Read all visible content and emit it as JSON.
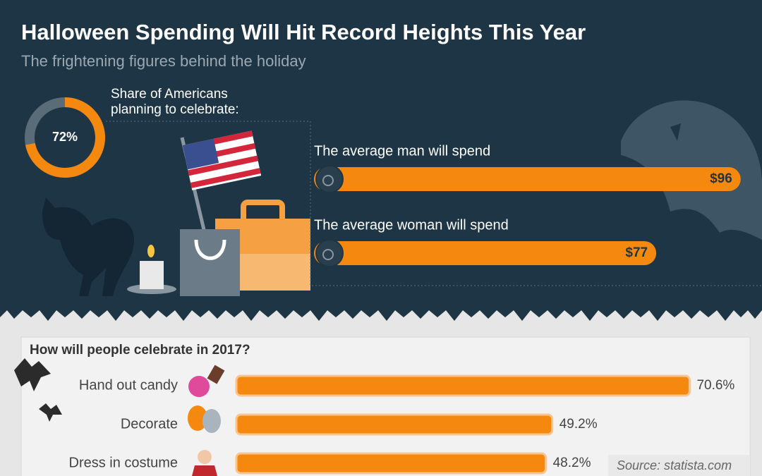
{
  "title": "Halloween Spending Will Hit Record Heights This Year",
  "subtitle": "The frightening figures behind the holiday",
  "chart_data": [
    {
      "type": "donut",
      "title": "Share of Americans planning to celebrate:",
      "values": [
        72
      ],
      "value_labels": [
        "72%"
      ],
      "color": "#f5890f"
    },
    {
      "type": "spend-bar",
      "categories": [
        "The average man will spend",
        "The average woman will spend"
      ],
      "values": [
        96,
        77
      ],
      "value_labels": [
        "$96",
        "$77"
      ],
      "color": "#f5890f"
    },
    {
      "type": "celebrate-bar",
      "title": "How will people celebrate in 2017?",
      "categories": [
        "Hand out candy",
        "Decorate",
        "Dress in costume"
      ],
      "values": [
        70.6,
        49.2,
        48.2
      ],
      "value_labels": [
        "70.6%",
        "49.2%",
        "48.2%"
      ],
      "color": "#f5890f"
    }
  ],
  "source": "Source: statista.com"
}
